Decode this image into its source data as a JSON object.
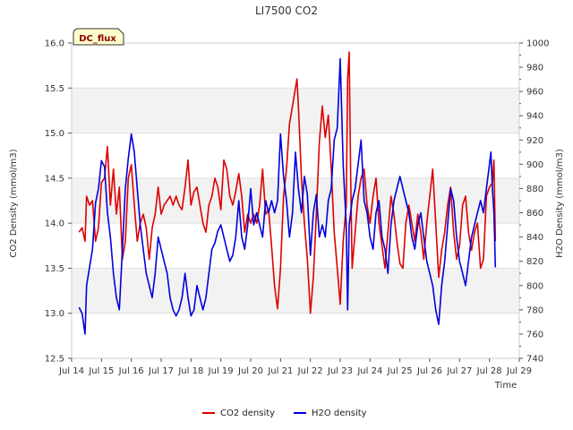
{
  "chart_data": {
    "type": "line",
    "title": "LI7500 CO2",
    "xlabel": "Time",
    "ylabel_left": "CO2 Density (mmol/m3)",
    "ylabel_right": "H2O Density (mmol/m3)",
    "badge": "DC_flux",
    "x_tick_labels": [
      "Jul 14",
      "Jul 15",
      "Jul 16",
      "Jul 17",
      "Jul 18",
      "Jul 19",
      "Jul 20",
      "Jul 21",
      "Jul 22",
      "Jul 23",
      "Jul 24",
      "Jul 25",
      "Jul 26",
      "Jul 27",
      "Jul 28",
      "Jul 29"
    ],
    "xlim": [
      14,
      29
    ],
    "ylim_left": [
      12.5,
      16.0
    ],
    "yticks_left": [
      "12.5",
      "13.0",
      "13.5",
      "14.0",
      "14.5",
      "15.0",
      "15.5",
      "16.0"
    ],
    "ylim_right": [
      740,
      1000
    ],
    "yticks_right": [
      "740",
      "760",
      "780",
      "800",
      "820",
      "840",
      "860",
      "880",
      "900",
      "920",
      "940",
      "960",
      "980",
      "1000"
    ],
    "grid": "horizontal bands",
    "legend_position": "bottom",
    "series": [
      {
        "name": "CO2 density",
        "axis": "left",
        "color": "#dd0000",
        "points": [
          [
            14.25,
            13.9
          ],
          [
            14.35,
            13.95
          ],
          [
            14.45,
            13.8
          ],
          [
            14.5,
            14.3
          ],
          [
            14.6,
            14.2
          ],
          [
            14.7,
            14.25
          ],
          [
            14.8,
            13.8
          ],
          [
            14.9,
            13.95
          ],
          [
            15.0,
            14.45
          ],
          [
            15.1,
            14.5
          ],
          [
            15.2,
            14.85
          ],
          [
            15.3,
            14.2
          ],
          [
            15.4,
            14.6
          ],
          [
            15.5,
            14.1
          ],
          [
            15.6,
            14.4
          ],
          [
            15.7,
            13.6
          ],
          [
            15.8,
            13.8
          ],
          [
            15.9,
            14.5
          ],
          [
            16.0,
            14.65
          ],
          [
            16.1,
            14.2
          ],
          [
            16.2,
            13.8
          ],
          [
            16.3,
            14.0
          ],
          [
            16.4,
            14.1
          ],
          [
            16.5,
            13.95
          ],
          [
            16.6,
            13.6
          ],
          [
            16.7,
            13.95
          ],
          [
            16.8,
            14.1
          ],
          [
            16.9,
            14.4
          ],
          [
            17.0,
            14.1
          ],
          [
            17.1,
            14.2
          ],
          [
            17.2,
            14.25
          ],
          [
            17.3,
            14.3
          ],
          [
            17.4,
            14.2
          ],
          [
            17.5,
            14.3
          ],
          [
            17.6,
            14.2
          ],
          [
            17.7,
            14.15
          ],
          [
            17.8,
            14.4
          ],
          [
            17.9,
            14.7
          ],
          [
            18.0,
            14.2
          ],
          [
            18.1,
            14.35
          ],
          [
            18.2,
            14.4
          ],
          [
            18.3,
            14.2
          ],
          [
            18.4,
            14.0
          ],
          [
            18.5,
            13.9
          ],
          [
            18.6,
            14.2
          ],
          [
            18.7,
            14.3
          ],
          [
            18.8,
            14.5
          ],
          [
            18.9,
            14.4
          ],
          [
            19.0,
            14.15
          ],
          [
            19.1,
            14.7
          ],
          [
            19.2,
            14.6
          ],
          [
            19.3,
            14.3
          ],
          [
            19.4,
            14.2
          ],
          [
            19.5,
            14.35
          ],
          [
            19.6,
            14.55
          ],
          [
            19.7,
            14.3
          ],
          [
            19.8,
            13.9
          ],
          [
            19.9,
            14.1
          ],
          [
            20.0,
            14.0
          ],
          [
            20.1,
            14.1
          ],
          [
            20.2,
            14.0
          ],
          [
            20.3,
            14.2
          ],
          [
            20.4,
            14.6
          ],
          [
            20.5,
            14.1
          ],
          [
            20.6,
            14.15
          ],
          [
            20.7,
            13.75
          ],
          [
            20.8,
            13.3
          ],
          [
            20.9,
            13.05
          ],
          [
            21.0,
            13.5
          ],
          [
            21.1,
            14.3
          ],
          [
            21.2,
            14.6
          ],
          [
            21.3,
            15.1
          ],
          [
            21.4,
            15.3
          ],
          [
            21.5,
            15.5
          ],
          [
            21.55,
            15.6
          ],
          [
            21.6,
            15.3
          ],
          [
            21.7,
            14.5
          ],
          [
            21.8,
            14.0
          ],
          [
            21.9,
            13.6
          ],
          [
            22.0,
            13.0
          ],
          [
            22.1,
            13.4
          ],
          [
            22.2,
            14.1
          ],
          [
            22.3,
            14.9
          ],
          [
            22.4,
            15.3
          ],
          [
            22.5,
            14.95
          ],
          [
            22.6,
            15.2
          ],
          [
            22.7,
            14.6
          ],
          [
            22.8,
            13.9
          ],
          [
            22.9,
            13.5
          ],
          [
            23.0,
            13.1
          ],
          [
            23.1,
            13.8
          ],
          [
            23.2,
            14.2
          ],
          [
            23.25,
            15.6
          ],
          [
            23.3,
            15.9
          ],
          [
            23.35,
            14.5
          ],
          [
            23.4,
            13.5
          ],
          [
            23.5,
            13.9
          ],
          [
            23.6,
            14.3
          ],
          [
            23.7,
            14.5
          ],
          [
            23.8,
            14.6
          ],
          [
            23.9,
            14.2
          ],
          [
            24.0,
            14.0
          ],
          [
            24.1,
            14.3
          ],
          [
            24.2,
            14.5
          ],
          [
            24.3,
            14.0
          ],
          [
            24.4,
            13.75
          ],
          [
            24.5,
            13.5
          ],
          [
            24.6,
            13.9
          ],
          [
            24.7,
            14.3
          ],
          [
            24.8,
            14.1
          ],
          [
            24.9,
            13.8
          ],
          [
            25.0,
            13.55
          ],
          [
            25.1,
            13.5
          ],
          [
            25.2,
            14.0
          ],
          [
            25.3,
            14.2
          ],
          [
            25.4,
            14.0
          ],
          [
            25.5,
            13.8
          ],
          [
            25.6,
            14.1
          ],
          [
            25.7,
            13.9
          ],
          [
            25.8,
            13.6
          ],
          [
            25.9,
            14.0
          ],
          [
            26.0,
            14.3
          ],
          [
            26.1,
            14.6
          ],
          [
            26.2,
            14.0
          ],
          [
            26.3,
            13.4
          ],
          [
            26.4,
            13.7
          ],
          [
            26.5,
            13.9
          ],
          [
            26.6,
            14.2
          ],
          [
            26.7,
            14.4
          ],
          [
            26.8,
            13.9
          ],
          [
            26.9,
            13.6
          ],
          [
            27.0,
            13.75
          ],
          [
            27.1,
            14.2
          ],
          [
            27.2,
            14.3
          ],
          [
            27.3,
            13.9
          ],
          [
            27.4,
            13.7
          ],
          [
            27.5,
            13.9
          ],
          [
            27.6,
            14.0
          ],
          [
            27.7,
            13.5
          ],
          [
            27.8,
            13.6
          ],
          [
            27.9,
            14.3
          ],
          [
            28.0,
            14.4
          ],
          [
            28.1,
            14.45
          ],
          [
            28.15,
            14.7
          ],
          [
            28.2,
            13.8
          ]
        ]
      },
      {
        "name": "H2O density",
        "axis": "right",
        "color": "#0000dd",
        "points": [
          [
            14.25,
            782
          ],
          [
            14.35,
            777
          ],
          [
            14.45,
            760
          ],
          [
            14.5,
            800
          ],
          [
            14.6,
            815
          ],
          [
            14.7,
            830
          ],
          [
            14.8,
            868
          ],
          [
            14.9,
            880
          ],
          [
            15.0,
            903
          ],
          [
            15.1,
            898
          ],
          [
            15.2,
            860
          ],
          [
            15.3,
            840
          ],
          [
            15.4,
            810
          ],
          [
            15.5,
            790
          ],
          [
            15.6,
            780
          ],
          [
            15.7,
            830
          ],
          [
            15.8,
            880
          ],
          [
            15.9,
            905
          ],
          [
            16.0,
            925
          ],
          [
            16.1,
            910
          ],
          [
            16.2,
            880
          ],
          [
            16.3,
            850
          ],
          [
            16.4,
            830
          ],
          [
            16.5,
            810
          ],
          [
            16.6,
            800
          ],
          [
            16.7,
            790
          ],
          [
            16.8,
            810
          ],
          [
            16.9,
            840
          ],
          [
            17.0,
            830
          ],
          [
            17.1,
            820
          ],
          [
            17.2,
            810
          ],
          [
            17.3,
            790
          ],
          [
            17.4,
            780
          ],
          [
            17.5,
            775
          ],
          [
            17.6,
            780
          ],
          [
            17.7,
            790
          ],
          [
            17.8,
            810
          ],
          [
            17.9,
            790
          ],
          [
            18.0,
            775
          ],
          [
            18.1,
            780
          ],
          [
            18.2,
            800
          ],
          [
            18.3,
            790
          ],
          [
            18.4,
            780
          ],
          [
            18.5,
            790
          ],
          [
            18.6,
            810
          ],
          [
            18.7,
            830
          ],
          [
            18.8,
            835
          ],
          [
            18.9,
            845
          ],
          [
            19.0,
            850
          ],
          [
            19.1,
            840
          ],
          [
            19.2,
            830
          ],
          [
            19.3,
            820
          ],
          [
            19.4,
            825
          ],
          [
            19.5,
            840
          ],
          [
            19.6,
            870
          ],
          [
            19.7,
            840
          ],
          [
            19.8,
            830
          ],
          [
            19.9,
            850
          ],
          [
            20.0,
            880
          ],
          [
            20.1,
            850
          ],
          [
            20.2,
            860
          ],
          [
            20.3,
            850
          ],
          [
            20.4,
            840
          ],
          [
            20.5,
            870
          ],
          [
            20.6,
            860
          ],
          [
            20.7,
            870
          ],
          [
            20.8,
            860
          ],
          [
            20.9,
            870
          ],
          [
            21.0,
            925
          ],
          [
            21.1,
            890
          ],
          [
            21.2,
            870
          ],
          [
            21.3,
            840
          ],
          [
            21.4,
            860
          ],
          [
            21.5,
            910
          ],
          [
            21.6,
            880
          ],
          [
            21.7,
            860
          ],
          [
            21.8,
            890
          ],
          [
            21.9,
            875
          ],
          [
            22.0,
            825
          ],
          [
            22.1,
            860
          ],
          [
            22.2,
            875
          ],
          [
            22.3,
            840
          ],
          [
            22.4,
            850
          ],
          [
            22.5,
            840
          ],
          [
            22.6,
            870
          ],
          [
            22.7,
            880
          ],
          [
            22.8,
            920
          ],
          [
            22.9,
            930
          ],
          [
            23.0,
            987
          ],
          [
            23.1,
            900
          ],
          [
            23.2,
            850
          ],
          [
            23.25,
            780
          ],
          [
            23.3,
            850
          ],
          [
            23.4,
            870
          ],
          [
            23.5,
            880
          ],
          [
            23.6,
            900
          ],
          [
            23.7,
            920
          ],
          [
            23.8,
            870
          ],
          [
            23.9,
            860
          ],
          [
            24.0,
            840
          ],
          [
            24.1,
            830
          ],
          [
            24.2,
            860
          ],
          [
            24.3,
            870
          ],
          [
            24.4,
            840
          ],
          [
            24.5,
            830
          ],
          [
            24.6,
            810
          ],
          [
            24.7,
            850
          ],
          [
            24.8,
            870
          ],
          [
            24.9,
            880
          ],
          [
            25.0,
            890
          ],
          [
            25.1,
            880
          ],
          [
            25.2,
            870
          ],
          [
            25.3,
            860
          ],
          [
            25.4,
            840
          ],
          [
            25.5,
            830
          ],
          [
            25.6,
            850
          ],
          [
            25.7,
            860
          ],
          [
            25.8,
            840
          ],
          [
            25.9,
            820
          ],
          [
            26.0,
            810
          ],
          [
            26.1,
            800
          ],
          [
            26.2,
            780
          ],
          [
            26.3,
            768
          ],
          [
            26.4,
            800
          ],
          [
            26.5,
            820
          ],
          [
            26.6,
            850
          ],
          [
            26.7,
            880
          ],
          [
            26.8,
            870
          ],
          [
            26.9,
            840
          ],
          [
            27.0,
            820
          ],
          [
            27.1,
            810
          ],
          [
            27.2,
            800
          ],
          [
            27.3,
            820
          ],
          [
            27.4,
            840
          ],
          [
            27.5,
            850
          ],
          [
            27.6,
            860
          ],
          [
            27.7,
            870
          ],
          [
            27.8,
            860
          ],
          [
            27.9,
            880
          ],
          [
            28.0,
            900
          ],
          [
            28.05,
            910
          ],
          [
            28.1,
            880
          ],
          [
            28.15,
            860
          ],
          [
            28.2,
            815
          ]
        ]
      }
    ]
  }
}
